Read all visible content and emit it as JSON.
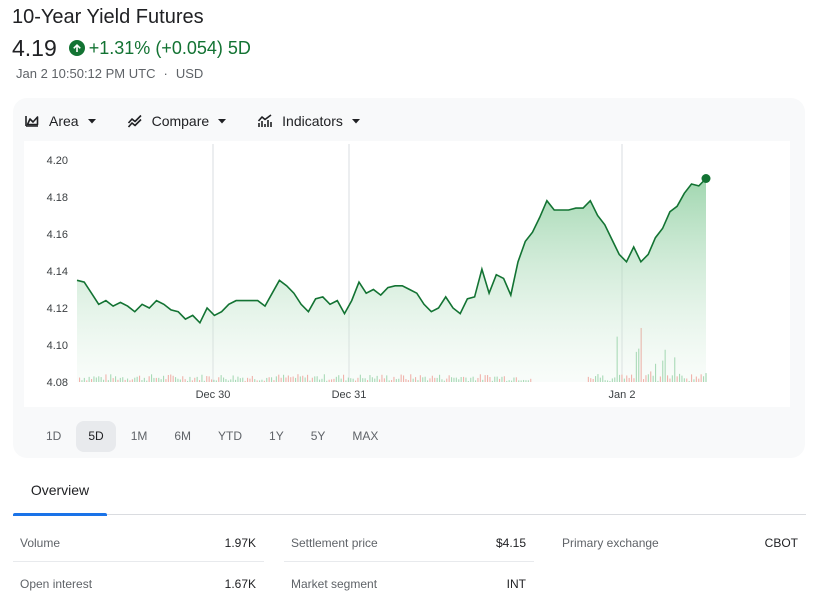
{
  "header": {
    "title": "10-Year Yield Futures",
    "price": "4.19",
    "change": "+1.31% (+0.054) 5D",
    "timestamp": "Jan 2 10:50:12 PM UTC",
    "currency": "USD"
  },
  "toolbar": {
    "area_label": "Area",
    "compare_label": "Compare",
    "indicators_label": "Indicators"
  },
  "chart_data": {
    "type": "area",
    "y_ticks": [
      "4.20",
      "4.18",
      "4.16",
      "4.14",
      "4.12",
      "4.10",
      "4.08"
    ],
    "x_labels": [
      "Dec 30",
      "Dec 31",
      "Jan 2"
    ],
    "ylim": [
      4.08,
      4.2
    ],
    "line_color": "#137333",
    "fill_color": "#81c995",
    "series": [
      {
        "values": [
          4.135,
          4.134,
          4.128,
          4.122,
          4.124,
          4.121,
          4.123,
          4.121,
          4.118,
          4.122,
          4.12,
          4.124,
          4.122,
          4.119,
          4.118,
          4.114,
          4.116,
          4.112,
          4.12,
          4.116,
          4.118,
          4.122,
          4.124,
          4.124,
          4.124,
          4.124,
          4.121,
          4.128,
          4.135,
          4.132,
          4.128,
          4.122,
          4.118,
          4.125,
          4.126,
          4.122,
          4.124,
          4.117,
          4.124,
          4.134,
          4.128,
          4.13,
          4.127,
          4.131,
          4.132,
          4.132,
          4.13,
          4.128,
          4.122,
          4.118,
          4.12,
          4.126,
          4.12,
          4.117,
          4.125,
          4.126,
          4.141,
          4.128,
          4.138,
          4.136,
          4.127,
          4.145,
          4.156,
          4.161,
          4.169,
          4.178,
          4.173,
          4.173,
          4.173,
          4.174,
          4.174,
          4.178,
          4.17,
          4.165,
          4.157,
          4.149,
          4.145,
          4.153,
          4.145,
          4.149,
          4.158,
          4.163,
          4.172,
          4.175,
          4.182,
          4.187,
          4.186,
          4.19
        ],
        "note": ""
      }
    ]
  },
  "range_tabs": [
    "1D",
    "5D",
    "1M",
    "6M",
    "YTD",
    "1Y",
    "5Y",
    "MAX"
  ],
  "active_range": "5D",
  "overview_tab": "Overview",
  "stats": {
    "volume_label": "Volume",
    "volume_value": "1.97K",
    "open_interest_label": "Open interest",
    "open_interest_value": "1.67K",
    "settlement_label": "Settlement price",
    "settlement_value": "$4.15",
    "segment_label": "Market segment",
    "segment_value": "INT",
    "exchange_label": "Primary exchange",
    "exchange_value": "CBOT"
  }
}
